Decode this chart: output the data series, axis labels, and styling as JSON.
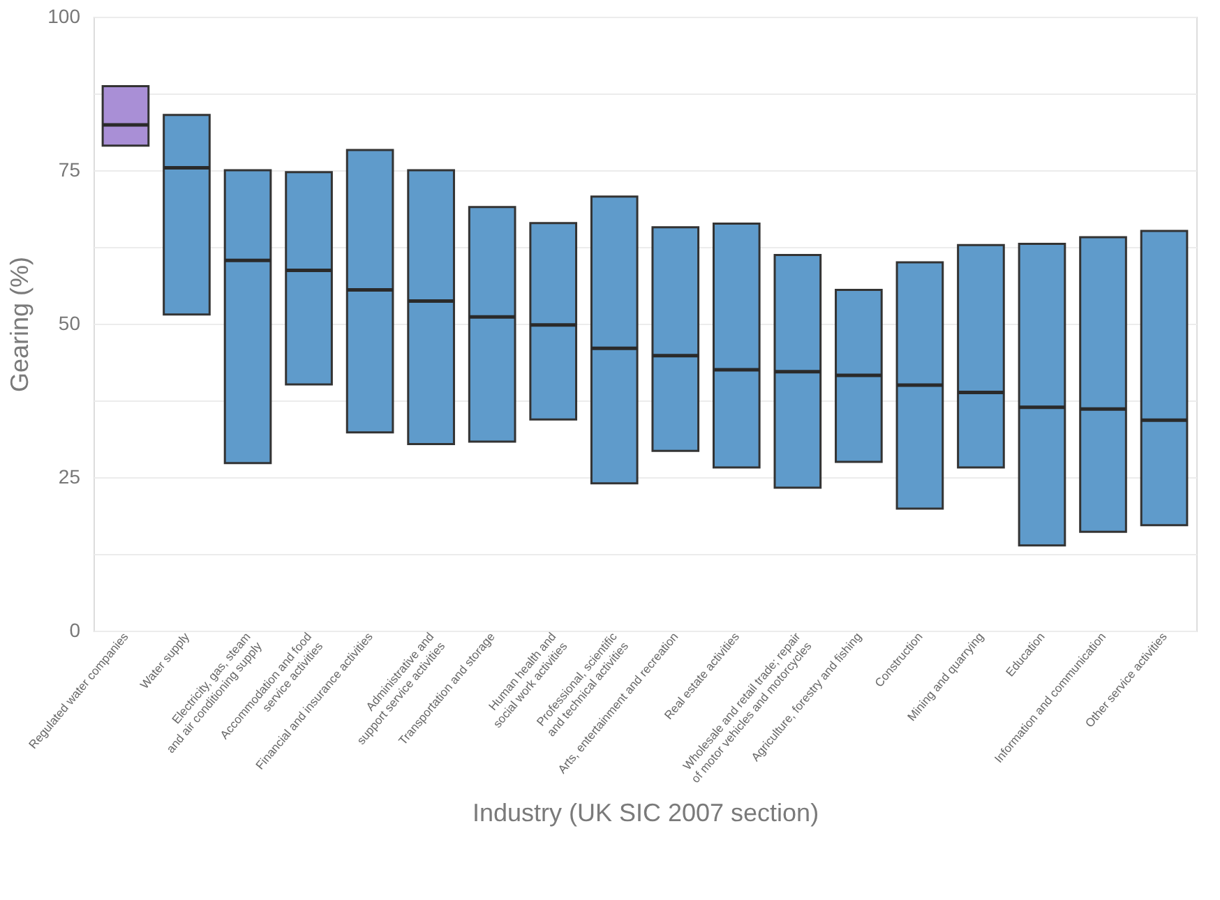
{
  "chart_data": {
    "type": "box",
    "xlabel": "Industry (UK SIC 2007 section)",
    "ylabel": "Gearing (%)",
    "categories": [
      "Regulated water companies",
      "Water supply",
      "Electricity, gas, steam and air conditioning supply",
      "Accommodation and food service activities",
      "Financial and insurance activities",
      "Administrative and support service activities",
      "Transportation and storage",
      "Human health and social work activities",
      "Professional, scientific and technical activities",
      "Arts, entertainment and recreation",
      "Real estate activities",
      "Wholesale and retail trade; repair of motor vehicles and motorcycles",
      "Agriculture, forestry and fishing",
      "Construction",
      "Mining and quarrying",
      "Education",
      "Information and communication",
      "Other service activities"
    ],
    "colors": [
      "#a98fd6",
      "#5f9bcb",
      "#5f9bcb",
      "#5f9bcb",
      "#5f9bcb",
      "#5f9bcb",
      "#5f9bcb",
      "#5f9bcb",
      "#5f9bcb",
      "#5f9bcb",
      "#5f9bcb",
      "#5f9bcb",
      "#5f9bcb",
      "#5f9bcb",
      "#5f9bcb",
      "#5f9bcb",
      "#5f9bcb",
      "#5f9bcb"
    ],
    "boxes": [
      {
        "low": 79.0,
        "q1": 79.0,
        "median": 82.4,
        "q3": 88.7,
        "high": 88.7
      },
      {
        "low": 51.5,
        "q1": 51.5,
        "median": 75.4,
        "q3": 84.0,
        "high": 84.0
      },
      {
        "low": 27.3,
        "q1": 27.3,
        "median": 60.3,
        "q3": 75.0,
        "high": 75.0
      },
      {
        "low": 40.1,
        "q1": 40.1,
        "median": 58.7,
        "q3": 74.7,
        "high": 74.7
      },
      {
        "low": 32.3,
        "q1": 32.3,
        "median": 55.5,
        "q3": 78.3,
        "high": 78.3
      },
      {
        "low": 30.4,
        "q1": 30.4,
        "median": 53.7,
        "q3": 75.0,
        "high": 75.0
      },
      {
        "low": 30.8,
        "q1": 30.8,
        "median": 51.1,
        "q3": 69.0,
        "high": 69.0
      },
      {
        "low": 34.4,
        "q1": 34.4,
        "median": 49.8,
        "q3": 66.4,
        "high": 66.4
      },
      {
        "low": 24.0,
        "q1": 24.0,
        "median": 46.0,
        "q3": 70.7,
        "high": 70.7
      },
      {
        "low": 29.3,
        "q1": 29.3,
        "median": 44.8,
        "q3": 65.7,
        "high": 65.7
      },
      {
        "low": 26.6,
        "q1": 26.6,
        "median": 42.5,
        "q3": 66.3,
        "high": 66.3
      },
      {
        "low": 23.3,
        "q1": 23.3,
        "median": 42.2,
        "q3": 61.2,
        "high": 61.2
      },
      {
        "low": 27.5,
        "q1": 27.5,
        "median": 41.6,
        "q3": 55.5,
        "high": 55.5
      },
      {
        "low": 19.9,
        "q1": 19.9,
        "median": 40.0,
        "q3": 60.0,
        "high": 60.0
      },
      {
        "low": 26.6,
        "q1": 26.6,
        "median": 38.8,
        "q3": 62.8,
        "high": 62.8
      },
      {
        "low": 13.9,
        "q1": 13.9,
        "median": 36.4,
        "q3": 63.0,
        "high": 63.0
      },
      {
        "low": 16.1,
        "q1": 16.1,
        "median": 36.1,
        "q3": 64.1,
        "high": 64.1
      },
      {
        "low": 17.2,
        "q1": 17.2,
        "median": 34.3,
        "q3": 65.1,
        "high": 65.1
      }
    ],
    "ylim": [
      0,
      100
    ],
    "yticks": [
      0,
      {
        "value": 12.5,
        "label": null
      },
      25,
      {
        "value": 37.5,
        "label": null
      },
      50,
      {
        "value": 62.5,
        "label": null
      },
      75,
      {
        "value": 87.5,
        "label": null
      },
      100
    ],
    "grid": "y"
  }
}
